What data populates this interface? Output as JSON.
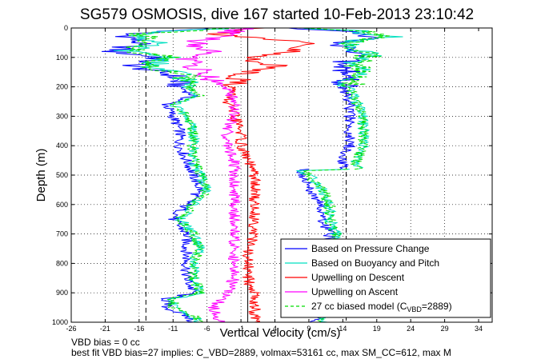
{
  "chart_data": {
    "type": "line",
    "title": "SG579 OSMOSIS, dive 167 started 10-Feb-2013 23:10:42",
    "xlabel": "Vertical Velocity (cm/s)",
    "ylabel": "Depth (m)",
    "xlim": [
      -26,
      36
    ],
    "ylim": [
      0,
      1000
    ],
    "y_reversed": true,
    "grid": true,
    "legend_position": "bottom-right",
    "xticks": [
      "-26",
      "-21",
      "-16",
      "-11",
      "-6",
      "-1",
      "4",
      "9",
      "14",
      "19",
      "24",
      "29",
      "34"
    ],
    "yticks": [
      "0",
      "100",
      "200",
      "300",
      "400",
      "500",
      "600",
      "700",
      "800",
      "900",
      "1000"
    ],
    "reference_lines": [
      {
        "x": -15,
        "style": "dashed",
        "color": "#000000"
      },
      {
        "x": 14.5,
        "style": "dashed",
        "color": "#000000"
      },
      {
        "x": 0,
        "style": "solid",
        "color": "#000000"
      }
    ],
    "series": [
      {
        "name": "Based on Pressure Change",
        "color": "#0000ff",
        "style": "solid",
        "segments": [
          {
            "depth": [
              0,
              20,
              50,
              80,
              100,
              130,
              160,
              200,
              230,
              260,
              300,
              350,
              400,
              450,
              500,
              550,
              600,
              650,
              700,
              750,
              800,
              850,
              900,
              920,
              950,
              980,
              1000
            ],
            "x": [
              -5,
              -18,
              -16,
              -20,
              -13,
              -17,
              -11,
              -10,
              -8,
              -12,
              -11,
              -10,
              -10,
              -9,
              -8,
              -7,
              -9,
              -11,
              -9,
              -9,
              -9,
              -9,
              -8,
              -12,
              -12,
              -9,
              -8
            ]
          },
          {
            "depth": [
              1000,
              950,
              900,
              850,
              800,
              750,
              700,
              650,
              600,
              550,
              500,
              485,
              480
            ],
            "x": [
              10,
              11,
              11,
              11,
              12,
              12,
              12,
              11,
              11,
              9,
              8,
              7,
              9
            ]
          },
          {
            "depth": [
              480,
              450,
              400,
              350,
              300,
              250,
              200,
              160,
              120,
              100,
              80,
              50,
              30,
              10,
              0
            ],
            "x": [
              14,
              14,
              15,
              15,
              15,
              15,
              14,
              15,
              14,
              16,
              15,
              12,
              19,
              14,
              6
            ]
          }
        ]
      },
      {
        "name": "Based on Buoyancy and Pitch",
        "color": "#00e0c0",
        "style": "solid",
        "segments": [
          {
            "depth": [
              0,
              20,
              50,
              80,
              100,
              130,
              160,
              200,
              230,
              260,
              300,
              350,
              400,
              450,
              500,
              550,
              600,
              650,
              700,
              750,
              800,
              850,
              900,
              920,
              950,
              980,
              1000
            ],
            "x": [
              -3,
              -16,
              -14,
              -18,
              -11,
              -15,
              -9,
              -9,
              -7,
              -11,
              -9,
              -8,
              -8,
              -8,
              -7,
              -6,
              -8,
              -10,
              -8,
              -7,
              -8,
              -8,
              -7,
              -11,
              -11,
              -8,
              -7
            ]
          },
          {
            "depth": [
              1000,
              950,
              900,
              850,
              800,
              750,
              700,
              650,
              600,
              550,
              500,
              485,
              480
            ],
            "x": [
              11,
              12,
              12,
              12,
              13,
              13,
              13,
              12,
              12,
              11,
              9,
              8,
              15
            ]
          },
          {
            "depth": [
              480,
              450,
              400,
              350,
              300,
              250,
              200,
              160,
              120,
              100,
              80,
              50,
              30,
              10,
              0
            ],
            "x": [
              16,
              16,
              17,
              17,
              17,
              16,
              15,
              16,
              16,
              18,
              17,
              14,
              21,
              16,
              8
            ]
          }
        ]
      },
      {
        "name": "Upwelling on Descent",
        "color": "#ff0000",
        "style": "solid",
        "segments": [
          {
            "depth": [
              0,
              20,
              50,
              80,
              100,
              130,
              160,
              200,
              250,
              300,
              350,
              400,
              450,
              500,
              550,
              600,
              650,
              700,
              750,
              800,
              850,
              900,
              950,
              1000
            ],
            "x": [
              2,
              -4,
              8,
              6,
              0,
              4,
              -1,
              -2,
              -3,
              -2,
              -1,
              -1,
              0,
              1,
              1,
              1,
              1,
              1,
              0,
              0,
              0,
              1,
              1,
              1
            ]
          }
        ]
      },
      {
        "name": "Upwelling on Ascent",
        "color": "#ff00ff",
        "style": "solid",
        "segments": [
          {
            "depth": [
              1000,
              950,
              900,
              850,
              800,
              750,
              700,
              650,
              600,
              550,
              500,
              450,
              400,
              350,
              300,
              250,
              200,
              160,
              130,
              100,
              80,
              50,
              20,
              0
            ],
            "x": [
              -4,
              -5,
              -3,
              -2,
              -2,
              -2,
              -2,
              -2,
              -2,
              -2,
              -2,
              -2,
              -3,
              -3,
              -2,
              -2,
              -3,
              -6,
              -8,
              -9,
              -6,
              -8,
              -3,
              -1
            ]
          }
        ]
      },
      {
        "name": "27 cc biased model (C_VBD=2889)",
        "color": "#00dd00",
        "style": "dashed",
        "segments": [
          {
            "depth": [
              0,
              20,
              50,
              80,
              100,
              130,
              160,
              200,
              230,
              260,
              300,
              350,
              400,
              450,
              500,
              550,
              600,
              650,
              700,
              750,
              800,
              850,
              900,
              920,
              950,
              980,
              1000
            ],
            "x": [
              -3,
              -16,
              -14,
              -18,
              -11,
              -15,
              -9,
              -9,
              -7,
              -11,
              -9,
              -8,
              -8,
              -8,
              -7,
              -6,
              -8,
              -10,
              -8,
              -7,
              -8,
              -8,
              -7,
              -11,
              -11,
              -8,
              -7
            ]
          },
          {
            "depth": [
              1000,
              950,
              900,
              850,
              800,
              750,
              700,
              650,
              600,
              550,
              500,
              485,
              480
            ],
            "x": [
              11,
              12,
              12,
              12,
              13,
              13,
              13,
              12,
              12,
              11,
              9,
              8,
              15
            ]
          },
          {
            "depth": [
              480,
              450,
              400,
              350,
              300,
              250,
              200,
              160,
              120,
              100,
              80,
              50,
              30,
              10,
              0
            ],
            "x": [
              16,
              16,
              17,
              17,
              17,
              16,
              15,
              16,
              16,
              18,
              17,
              14,
              21,
              16,
              8
            ]
          }
        ]
      }
    ],
    "legend": [
      {
        "label": "Based on Pressure Change",
        "color": "#0000ff",
        "style": "solid"
      },
      {
        "label": "Based on Buoyancy and Pitch",
        "color": "#00e0c0",
        "style": "solid"
      },
      {
        "label": "Upwelling on Descent",
        "color": "#ff0000",
        "style": "solid"
      },
      {
        "label": "Upwelling on Ascent",
        "color": "#ff00ff",
        "style": "solid"
      },
      {
        "label_main": "27 cc biased model (C",
        "label_sub": "VBD",
        "label_end": "=2889)",
        "color": "#00dd00",
        "style": "dashed"
      }
    ],
    "footnotes": [
      "VBD bias = 0 cc",
      "best fit VBD bias=27 implies: C_VBD=2889, volmax=53161 cc, max SM_CC=612, max M"
    ]
  }
}
